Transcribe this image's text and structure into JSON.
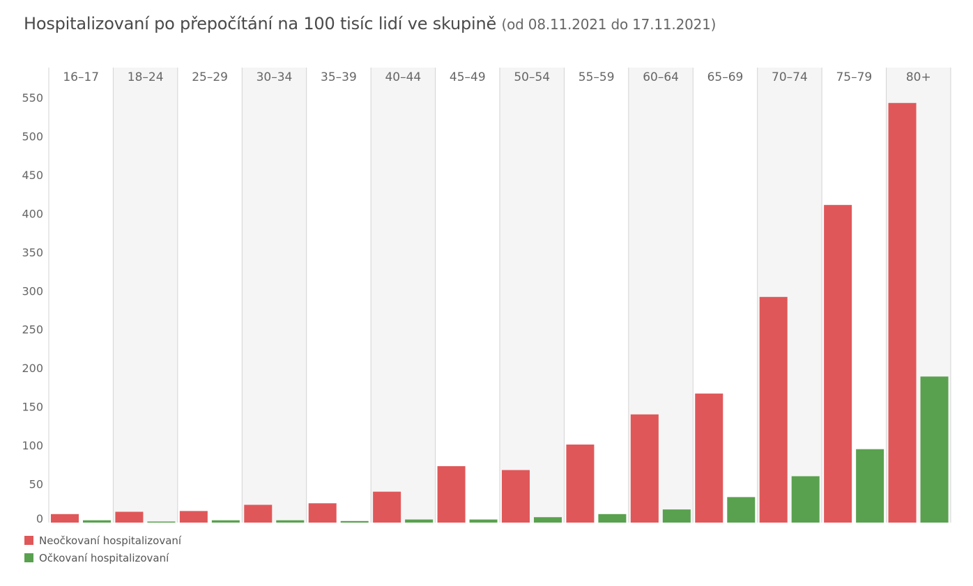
{
  "title": {
    "main": "Hospitalizovaní po přepočítání na 100 tisíc lidí ve skupině",
    "subtitle": "(od 08.11.2021 do 17.11.2021)"
  },
  "colors": {
    "unvaccinated": "#e05759",
    "vaccinated": "#59a14f",
    "band": "#f5f5f5",
    "divider": "#d3d3d3"
  },
  "legend": [
    {
      "label": "Neočkovaní hospitalizovaní",
      "color": "#e05759"
    },
    {
      "label": "Očkovaní hospitalizovaní",
      "color": "#59a14f"
    }
  ],
  "chart_data": {
    "type": "bar",
    "categories": [
      "16–17",
      "18–24",
      "25–29",
      "30–34",
      "35–39",
      "40–44",
      "45–49",
      "50–54",
      "55–59",
      "60–64",
      "65–69",
      "70–74",
      "75–79",
      "80+"
    ],
    "series": [
      {
        "name": "Neočkovaní hospitalizovaní",
        "values": [
          11,
          14,
          15,
          23,
          25,
          40,
          73,
          68,
          101,
          140,
          167,
          292,
          411,
          543
        ]
      },
      {
        "name": "Očkovaní hospitalizovaní",
        "values": [
          3,
          1,
          3,
          3,
          2,
          4,
          4,
          7,
          11,
          17,
          33,
          60,
          95,
          189
        ]
      }
    ],
    "yticks": [
      0,
      50,
      100,
      150,
      200,
      250,
      300,
      350,
      400,
      450,
      500,
      550
    ],
    "ylim": [
      0,
      550
    ],
    "xlabel": "",
    "ylabel": "",
    "grid": false,
    "legend_position": "bottom-left"
  }
}
